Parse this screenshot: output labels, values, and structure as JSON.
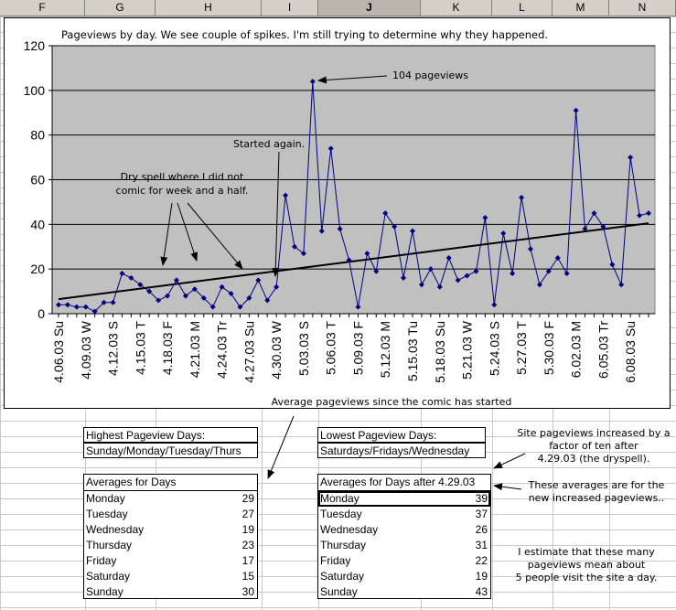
{
  "sheet": {
    "columns": [
      "F",
      "G",
      "H",
      "I",
      "J",
      "K",
      "L",
      "M",
      "N"
    ],
    "selected_column": "J"
  },
  "chart_data": {
    "type": "line",
    "title": "Pageviews by day. We see couple of spikes. I'm still trying to determine why they happened.",
    "xlabel": "",
    "ylabel": "",
    "ylim": [
      0,
      120
    ],
    "yticks": [
      0,
      20,
      40,
      60,
      80,
      100,
      120
    ],
    "grid": true,
    "x_tick_labels": [
      "4.06.03 Su",
      "4.09.03 W",
      "4.12.03 S",
      "4.15.03 T",
      "4.18.03 F",
      "4.21.03 M",
      "4.24.03 Tr",
      "4.27.03 Su",
      "4.30.03 W",
      "5.03.03 S",
      "5.06.03 T",
      "5.09.03 F",
      "5.12.03 M",
      "5.15.03 Tu",
      "5.18.03 Su",
      "5.21.03 W",
      "5.24.03 S",
      "5.27.03 T",
      "5.30.03 F",
      "6.02.03 M",
      "6.05.03 Tr",
      "6.08.03 Su"
    ],
    "series": [
      {
        "values": [
          4,
          4,
          3,
          3,
          1,
          5,
          5,
          18,
          16,
          13,
          10,
          6,
          8,
          15,
          8,
          11,
          7,
          3,
          12,
          9,
          3,
          7,
          15,
          6,
          12,
          53,
          30,
          27,
          104,
          37,
          74,
          38,
          24,
          3,
          27,
          19,
          45,
          39,
          16,
          37,
          13,
          20,
          12,
          25,
          15,
          17,
          19,
          43,
          4,
          36,
          18,
          52,
          29,
          13,
          19,
          25,
          18,
          91,
          38,
          45,
          39,
          22,
          13,
          70,
          44,
          45
        ],
        "color": "#000080"
      }
    ],
    "trendline": {
      "start": 6.5,
      "end": 40.5,
      "color": "#000000"
    },
    "annotations": {
      "peak": "104 pageviews",
      "started_again": "Started again.",
      "dry_spell": [
        "Dry spell where I did not",
        "comic for week and a half."
      ],
      "average_caption": "Average pageviews since the comic has started"
    }
  },
  "tables": {
    "highest": {
      "title": "Highest Pageview Days:",
      "value": "Sunday/Monday/Tuesday/Thurs"
    },
    "lowest": {
      "title": "Lowest Pageview Days:",
      "value": "Saturdays/Fridays/Wednesday"
    },
    "averages": {
      "title": "Averages for Days",
      "rows": [
        {
          "day": "Monday",
          "value": "29"
        },
        {
          "day": "Tuesday",
          "value": "27"
        },
        {
          "day": "Wednesday",
          "value": "19"
        },
        {
          "day": "Thursday",
          "value": "23"
        },
        {
          "day": "Friday",
          "value": "17"
        },
        {
          "day": "Saturday",
          "value": "15"
        },
        {
          "day": "Sunday",
          "value": "30"
        }
      ]
    },
    "averages_after": {
      "title": "Averages for Days after 4.29.03",
      "rows": [
        {
          "day": "Monday",
          "value": "39"
        },
        {
          "day": "Tuesday",
          "value": "37"
        },
        {
          "day": "Wednesday",
          "value": "26"
        },
        {
          "day": "Thursday",
          "value": "31"
        },
        {
          "day": "Friday",
          "value": "22"
        },
        {
          "day": "Saturday",
          "value": "19"
        },
        {
          "day": "Sunday",
          "value": "43"
        }
      ]
    }
  },
  "notes": {
    "increase": [
      "Site pageviews increased by a",
      "factor of ten after",
      "4.29.03 (the dryspell)."
    ],
    "averages_note": [
      "These averages are for the",
      "new increased pageviews.."
    ],
    "estimate": [
      "I estimate that these many",
      "pageviews mean about",
      "5 people visit the site a day."
    ]
  }
}
